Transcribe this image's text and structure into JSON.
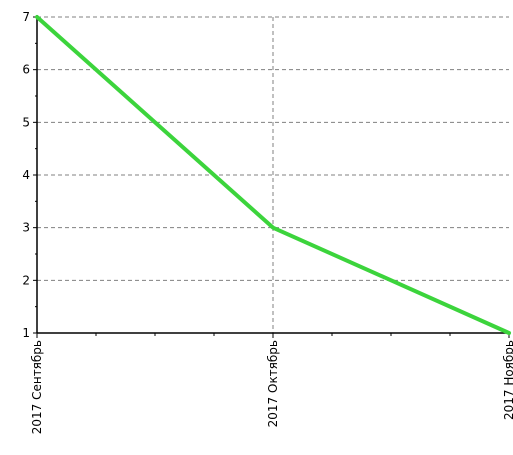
{
  "chart_data": {
    "type": "line",
    "categories": [
      "2017 Сентябрь",
      "2017 Октябрь",
      "2017 Ноябрь"
    ],
    "series": [
      {
        "values": [
          7,
          3,
          1
        ],
        "color": "#3cd43c"
      }
    ],
    "ylim": [
      1,
      7
    ],
    "yticks": [
      1,
      2,
      3,
      4,
      5,
      6,
      7
    ],
    "title": "",
    "xlabel": "",
    "ylabel": "",
    "grid": true,
    "grid_color": "#808080",
    "axis_color": "#000000"
  }
}
